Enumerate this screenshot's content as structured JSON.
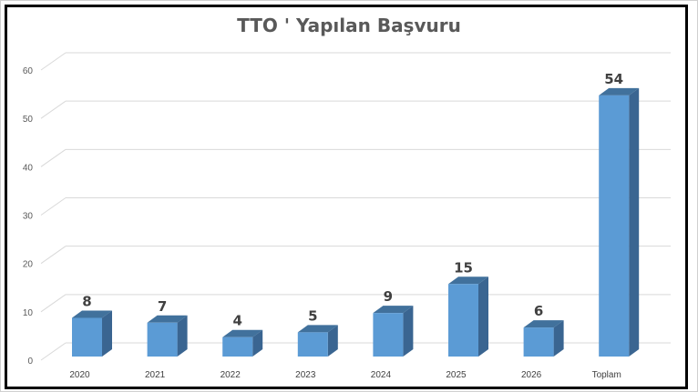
{
  "chart_data": {
    "type": "bar",
    "style": "3d-column",
    "title": "TTO ' Yapılan Başvuru",
    "categories": [
      "2020",
      "2021",
      "2022",
      "2023",
      "2024",
      "2025",
      "2026",
      "Toplam"
    ],
    "values": [
      8,
      7,
      4,
      5,
      9,
      15,
      6,
      54
    ],
    "ylim": [
      0,
      60
    ],
    "yticks": [
      0,
      10,
      20,
      30,
      40,
      50,
      60
    ],
    "grid": true,
    "legend": "none",
    "data_labels": true,
    "colors": {
      "front": "#5b9bd5",
      "top": "#41719c",
      "side": "#3a6591",
      "grid": "#d9d9d9",
      "frame": "#000000"
    }
  }
}
